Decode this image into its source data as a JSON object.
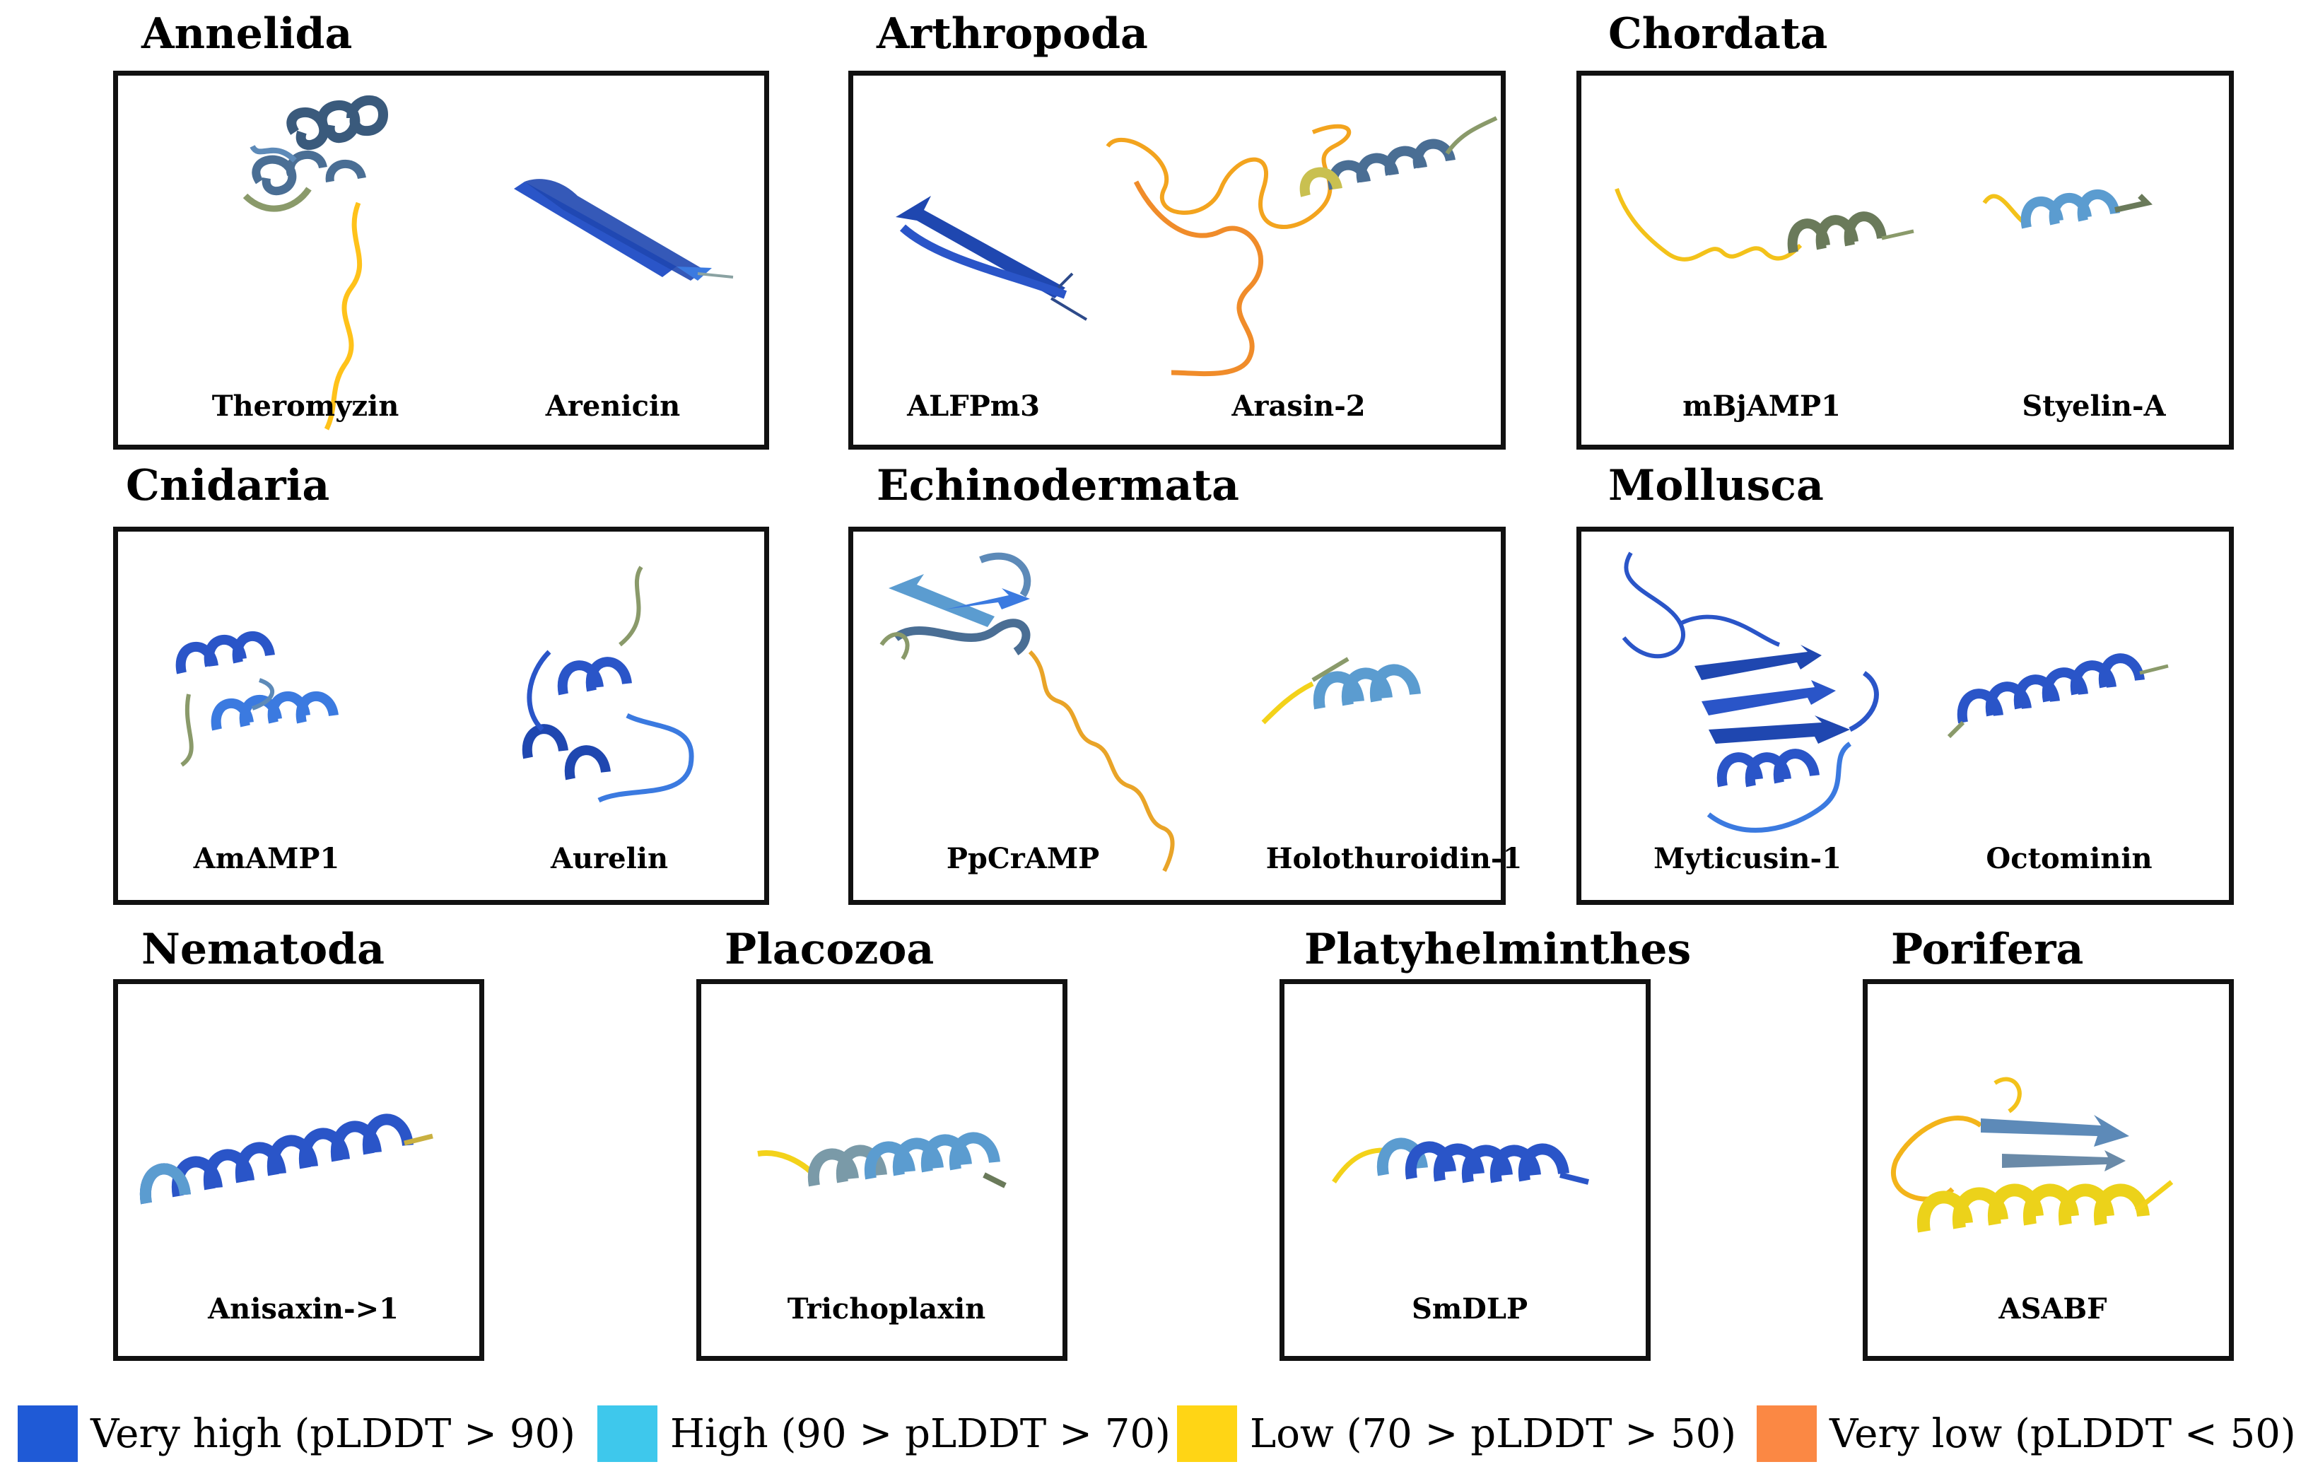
{
  "colors": {
    "very_high": "#1f5ad6",
    "high": "#3ec8ec",
    "low": "#ffd515",
    "very_low": "#fb8844",
    "steel": "#5d8ab8",
    "olive": "#8a9a6a"
  },
  "panels": [
    {
      "phylum": "Annelida",
      "structures": [
        {
          "name": "Theromyzin",
          "icon": "helical-bundle-with-tail-icon"
        },
        {
          "name": "Arenicin",
          "icon": "beta-hairpin-icon"
        }
      ]
    },
    {
      "phylum": "Arthropoda",
      "structures": [
        {
          "name": "ALFPm3",
          "icon": "beta-hairpin-icon"
        },
        {
          "name": "Arasin-2",
          "icon": "disordered-coil-with-helix-icon"
        }
      ]
    },
    {
      "phylum": "Chordata",
      "structures": [
        {
          "name": "mBjAMP1",
          "icon": "coil-with-helix-icon"
        },
        {
          "name": "Styelin-A",
          "icon": "short-helix-icon"
        }
      ]
    },
    {
      "phylum": "Cnidaria",
      "structures": [
        {
          "name": "AmAMP1",
          "icon": "helical-bundle-icon"
        },
        {
          "name": "Aurelin",
          "icon": "compact-fold-icon"
        }
      ]
    },
    {
      "phylum": "Echinodermata",
      "structures": [
        {
          "name": "PpCrAMP",
          "icon": "beta-fold-with-tail-icon"
        },
        {
          "name": "Holothuroidin-1",
          "icon": "short-helix-icon"
        }
      ]
    },
    {
      "phylum": "Mollusca",
      "structures": [
        {
          "name": "Myticusin-1",
          "icon": "globular-domain-icon"
        },
        {
          "name": "Octominin",
          "icon": "alpha-helix-icon"
        }
      ]
    },
    {
      "phylum": "Nematoda",
      "structures": [
        {
          "name": "Anisaxin->1",
          "icon": "alpha-helix-icon"
        }
      ]
    },
    {
      "phylum": "Placozoa",
      "structures": [
        {
          "name": "Trichoplaxin",
          "icon": "alpha-helix-icon"
        }
      ]
    },
    {
      "phylum": "Platyhelminthes",
      "structures": [
        {
          "name": "SmDLP",
          "icon": "alpha-helix-icon"
        }
      ]
    },
    {
      "phylum": "Porifera",
      "structures": [
        {
          "name": "ASABF",
          "icon": "helix-with-beta-hairpin-icon"
        }
      ]
    }
  ],
  "legend": [
    {
      "label": "Very high (pLDDT > 90)",
      "color": "#1f5ad6"
    },
    {
      "label": "High (90 > pLDDT > 70)",
      "color": "#3ec8ec"
    },
    {
      "label": "Low (70 > pLDDT > 50)",
      "color": "#ffd515"
    },
    {
      "label": "Very low (pLDDT < 50)",
      "color": "#fb8844"
    }
  ]
}
